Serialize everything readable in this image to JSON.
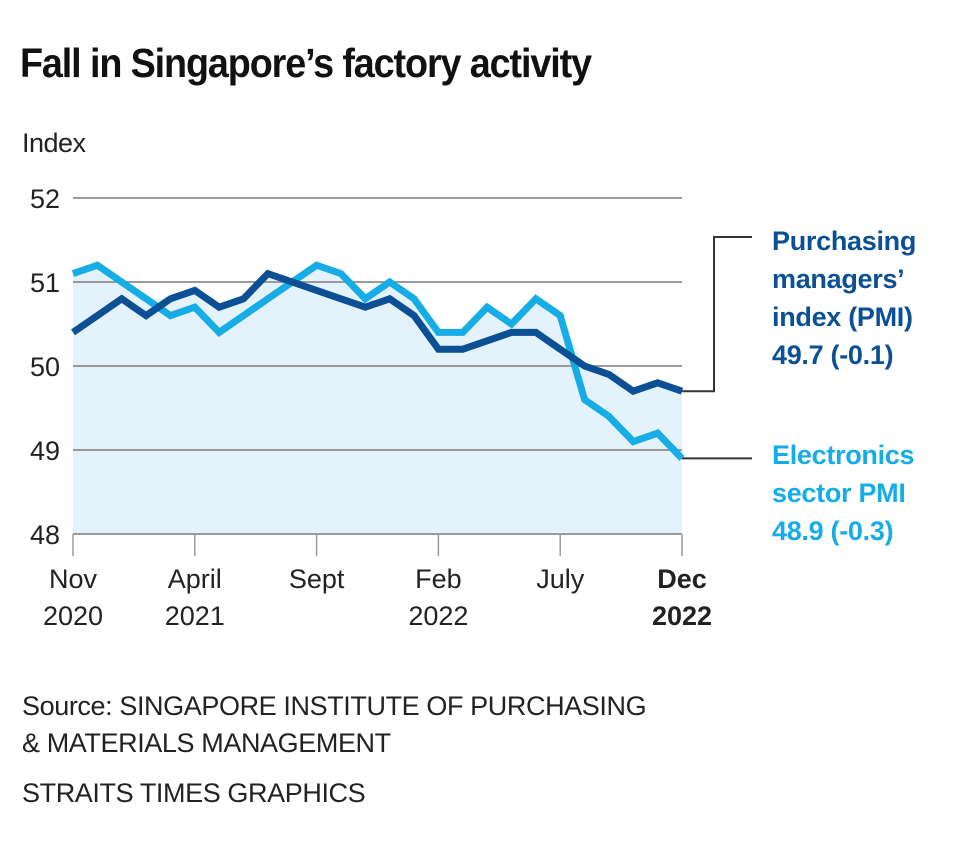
{
  "title": "Fall in Singapore’s factory activity",
  "chart_data": {
    "type": "line",
    "title": "Fall in Singapore’s factory activity",
    "ylabel": "Index",
    "xlabel": "",
    "ylim": [
      48,
      52
    ],
    "yticks": [
      "52",
      "51",
      "50",
      "49",
      "48"
    ],
    "grid": true,
    "x": [
      "Nov 2020",
      "Dec 2020",
      "Jan 2021",
      "Feb 2021",
      "Mar 2021",
      "Apr 2021",
      "May 2021",
      "Jun 2021",
      "Jul 2021",
      "Aug 2021",
      "Sep 2021",
      "Oct 2021",
      "Nov 2021",
      "Dec 2021",
      "Jan 2022",
      "Feb 2022",
      "Mar 2022",
      "Apr 2022",
      "May 2022",
      "Jun 2022",
      "Jul 2022",
      "Aug 2022",
      "Sep 2022",
      "Oct 2022",
      "Nov 2022",
      "Dec 2022"
    ],
    "xticks": [
      {
        "index": 0,
        "line1": "Nov",
        "line2": "2020",
        "bold": false
      },
      {
        "index": 5,
        "line1": "April",
        "line2": "2021",
        "bold": false
      },
      {
        "index": 10,
        "line1": "Sept",
        "line2": "",
        "bold": false
      },
      {
        "index": 15,
        "line1": "Feb",
        "line2": "2022",
        "bold": false
      },
      {
        "index": 20,
        "line1": "July",
        "line2": "",
        "bold": false
      },
      {
        "index": 25,
        "line1": "Dec",
        "line2": "2022",
        "bold": true
      }
    ],
    "series": [
      {
        "name": "Purchasing managers’ index (PMI)",
        "color": "#0b4f95",
        "values": [
          50.4,
          50.6,
          50.8,
          50.6,
          50.8,
          50.9,
          50.7,
          50.8,
          51.1,
          51.0,
          50.9,
          50.8,
          50.7,
          50.8,
          50.6,
          50.2,
          50.2,
          50.3,
          50.4,
          50.4,
          50.2,
          50.0,
          49.9,
          49.7,
          49.8,
          49.7
        ]
      },
      {
        "name": "Electronics sector PMI",
        "color": "#16ace6",
        "values": [
          51.1,
          51.2,
          51.0,
          50.8,
          50.6,
          50.7,
          50.4,
          50.6,
          50.8,
          51.0,
          51.2,
          51.1,
          50.8,
          51.0,
          50.8,
          50.4,
          50.4,
          50.7,
          50.5,
          50.8,
          50.6,
          49.6,
          49.4,
          49.1,
          49.2,
          48.9
        ]
      }
    ],
    "area_fill_color": "#e4f2fb",
    "legend": "right",
    "annotations": [
      {
        "series": 0,
        "lines": [
          "Purchasing",
          "managers’",
          "index (PMI)",
          "49.7 (-0.1)"
        ]
      },
      {
        "series": 1,
        "lines": [
          "Electronics",
          "sector PMI",
          "48.9 (-0.3)"
        ]
      }
    ]
  },
  "source": {
    "line1": "Source: SINGAPORE INSTITUTE OF PURCHASING",
    "line2": "& MATERIALS MANAGEMENT"
  },
  "credit": "STRAITS TIMES GRAPHICS"
}
